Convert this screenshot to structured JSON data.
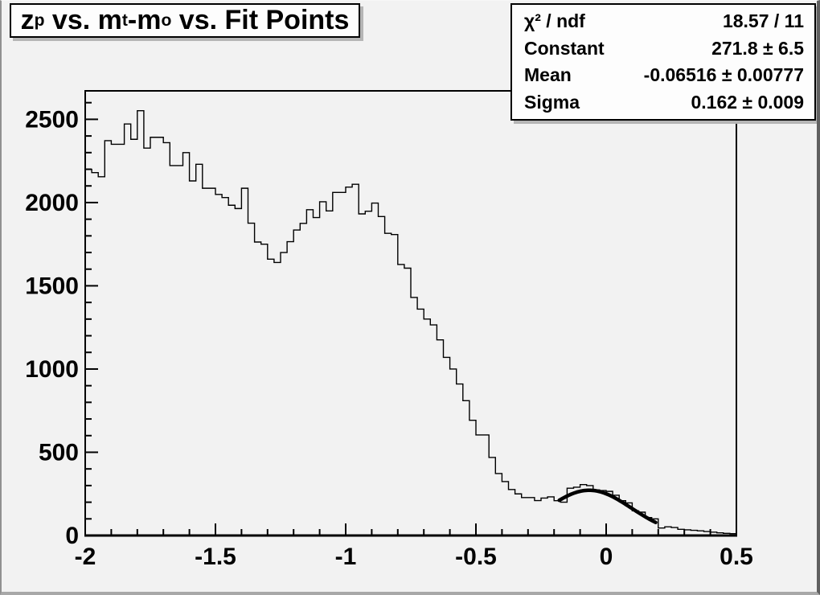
{
  "canvas": {
    "background_color": "#f2f2f2",
    "pave_background_color": "#fdfdfd",
    "line_color": "#000000",
    "shadow_color": "#b5b5b5"
  },
  "title": {
    "full_text": "z_p vs. m_t-m_o vs. Fit Points",
    "segments": [
      {
        "t": "z"
      },
      {
        "t": "p",
        "sub": true
      },
      {
        "t": " vs. m"
      },
      {
        "t": "t",
        "sub": true
      },
      {
        "t": "-m"
      },
      {
        "t": "o",
        "sub": true
      },
      {
        "t": " vs. Fit Points"
      }
    ]
  },
  "stats": {
    "rows": [
      {
        "label": "χ² / ndf",
        "value": "18.57 / 11"
      },
      {
        "label": "Constant",
        "value": "271.8 ± 6.5"
      },
      {
        "label": "Mean",
        "value": "-0.06516 ± 0.00777"
      },
      {
        "label": "Sigma",
        "value": "0.162 ± 0.009"
      }
    ]
  },
  "chart_data": {
    "type": "bar",
    "subtype": "step-histogram",
    "title": "z_p vs. m_t-m_o vs. Fit Points",
    "xlabel": "",
    "ylabel": "",
    "xlim": [
      -2.0,
      0.5
    ],
    "ylim": [
      0,
      2671
    ],
    "grid": false,
    "x_ticks": [
      -2,
      -1.5,
      -1,
      -0.5,
      0,
      0.5
    ],
    "x_tick_labels": [
      "-2",
      "-1.5",
      "-1",
      "-0.5",
      "0",
      "0.5"
    ],
    "x_minor_step": 0.1,
    "y_ticks": [
      0,
      500,
      1000,
      1500,
      2000,
      2500
    ],
    "y_tick_labels": [
      "0",
      "500",
      "1000",
      "1500",
      "2000",
      "2500"
    ],
    "y_minor_step": 100,
    "bin_start": -2.0,
    "bin_width": 0.025,
    "values": [
      2200,
      2180,
      2155,
      2372,
      2350,
      2350,
      2472,
      2380,
      2552,
      2327,
      2392,
      2392,
      2360,
      2222,
      2222,
      2300,
      2130,
      2230,
      2086,
      2086,
      2049,
      2030,
      1984,
      1964,
      2086,
      1876,
      1763,
      1750,
      1660,
      1640,
      1700,
      1765,
      1835,
      1875,
      1957,
      1910,
      2005,
      1950,
      2061,
      2061,
      2093,
      2110,
      1932,
      1948,
      1997,
      1916,
      1815,
      1808,
      1628,
      1606,
      1430,
      1360,
      1300,
      1265,
      1175,
      1070,
      1000,
      910,
      810,
      692,
      604,
      604,
      469,
      372,
      324,
      276,
      250,
      228,
      228,
      210,
      225,
      232,
      209,
      200,
      284,
      290,
      306,
      300,
      274,
      270,
      265,
      242,
      209,
      196,
      148,
      140,
      108,
      100,
      45,
      52,
      48,
      37,
      34,
      31,
      28,
      24,
      20,
      16,
      13,
      11
    ],
    "fit": {
      "shape": "gaussian",
      "constant": 271.8,
      "mean": -0.06516,
      "sigma": 0.162,
      "draw_range": [
        -0.18,
        0.19
      ]
    }
  }
}
